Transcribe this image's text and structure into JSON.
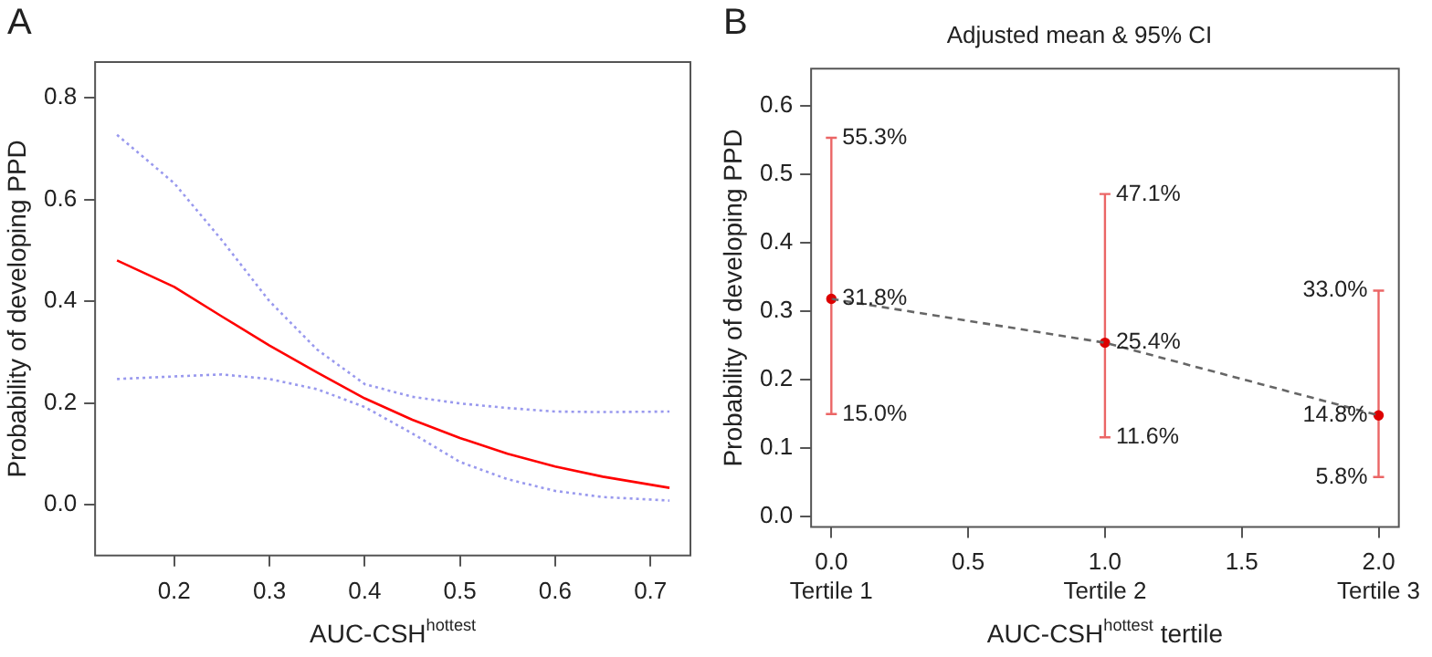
{
  "chart_data": [
    {
      "type": "line",
      "xlabel": "AUC-CSH$^{hottest}$",
      "ylabel": "Probability of developing PPD",
      "annotations": [
        "A"
      ],
      "xlim": [
        0.117,
        0.742
      ],
      "xticks": [
        0.2,
        0.3,
        0.4,
        0.5,
        0.6,
        0.7
      ],
      "ylim": [
        -0.1,
        0.87
      ],
      "yticks": [
        {
          "value": 0,
          "label": "0.0"
        },
        0.2,
        0.4,
        0.6,
        0.8
      ],
      "x": [
        0.14,
        0.2,
        0.25,
        0.3,
        0.35,
        0.4,
        0.45,
        0.5,
        0.55,
        0.6,
        0.65,
        0.72
      ],
      "series": [
        {
          "color": "#ff0000",
          "line_style": "solid",
          "values": [
            0.48,
            0.428,
            0.37,
            0.313,
            0.26,
            0.209,
            0.167,
            0.131,
            0.1,
            0.075,
            0.055,
            0.033
          ]
        },
        {
          "color": "#9999ee",
          "line_style": "dotted",
          "values": [
            0.727,
            0.632,
            0.52,
            0.4,
            0.305,
            0.237,
            0.212,
            0.199,
            0.19,
            0.183,
            0.182,
            0.183
          ]
        },
        {
          "color": "#9999ee",
          "line_style": "dotted",
          "values": [
            0.247,
            0.252,
            0.256,
            0.247,
            0.227,
            0.192,
            0.14,
            0.084,
            0.05,
            0.027,
            0.015,
            0.008
          ]
        }
      ]
    },
    {
      "type": "scatter",
      "title": "Adjusted mean & 95% CI",
      "xlabel": "AUC-CSH$^{hottest}$ tertile",
      "ylabel": "Probability of developing PPD",
      "xlim": [
        -0.074,
        2.074
      ],
      "xticks": [
        {
          "value": 0,
          "label": "0.0\nTertile 1"
        },
        0.5,
        {
          "value": 1,
          "label": "1.0\nTertile 2"
        },
        1.5,
        {
          "value": 2,
          "label": "2.0\nTertile 3"
        }
      ],
      "ylim": [
        -0.015,
        0.654
      ],
      "yticks": [
        {
          "value": 0,
          "label": "0.0"
        },
        0.1,
        0.2,
        0.3,
        0.4,
        0.5,
        0.6
      ],
      "x": [
        0,
        1,
        2
      ],
      "series": [
        {
          "type": "line",
          "color": "#666666",
          "line_style": "dashed",
          "values": [
            0.318,
            0.254,
            0.148
          ]
        },
        {
          "color": "#dd0000",
          "marker": "circle",
          "values": [
            0.318,
            0.254,
            0.148
          ],
          "errors": [
            [
              0.15,
              0.553
            ],
            [
              0.116,
              0.471
            ],
            [
              0.058,
              0.33
            ]
          ]
        }
      ],
      "annotations": [
        "B",
        {
          "text": "55.3%",
          "x": 0,
          "y": 0.553
        },
        {
          "text": "31.8%",
          "x": 0,
          "y": 0.318
        },
        {
          "text": "15.0%",
          "x": 0,
          "y": 0.15
        },
        {
          "text": "47.1%",
          "x": 1,
          "y": 0.471
        },
        {
          "text": "25.4%",
          "x": 1,
          "y": 0.254
        },
        {
          "text": "11.6%",
          "x": 1,
          "y": 0.116
        },
        {
          "text": "33.0%",
          "x": 2,
          "y": 0.33
        },
        {
          "text": "14.8%",
          "x": 2,
          "y": 0.148
        },
        {
          "text": "5.8%",
          "x": 2,
          "y": 0.058
        }
      ]
    }
  ]
}
